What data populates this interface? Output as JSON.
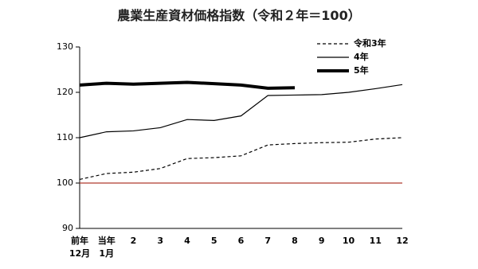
{
  "chart_data": {
    "type": "line",
    "title": "農業生産資材価格指数（令和２年＝100）",
    "categories": [
      "前年\n12月",
      "当年\n1月",
      "2",
      "3",
      "4",
      "5",
      "6",
      "7",
      "8",
      "9",
      "10",
      "11",
      "12"
    ],
    "series": [
      {
        "name": "令和3年",
        "color": "#000000",
        "dash": "dashed",
        "width": 1.2,
        "values": [
          100.8,
          102.1,
          102.4,
          103.2,
          105.4,
          105.6,
          106.0,
          108.4,
          108.7,
          108.9,
          109.0,
          109.7,
          110.0
        ]
      },
      {
        "name": "4年",
        "color": "#000000",
        "dash": "solid",
        "width": 1.2,
        "values": [
          110.0,
          111.3,
          111.5,
          112.2,
          114.0,
          113.8,
          114.8,
          119.3,
          119.4,
          119.5,
          120.0,
          120.8,
          121.7
        ]
      },
      {
        "name": "5年",
        "color": "#000000",
        "dash": "solid",
        "width": 4,
        "values": [
          121.6,
          122.0,
          121.8,
          122.0,
          122.2,
          121.9,
          121.6,
          120.9,
          121.0,
          null,
          null,
          null,
          null
        ]
      }
    ],
    "ylim": [
      90,
      130
    ],
    "yticks": [
      90,
      100,
      110,
      120,
      130
    ],
    "reference_line": {
      "value": 100,
      "color": "#b03a2e"
    },
    "legend": "top-right"
  }
}
